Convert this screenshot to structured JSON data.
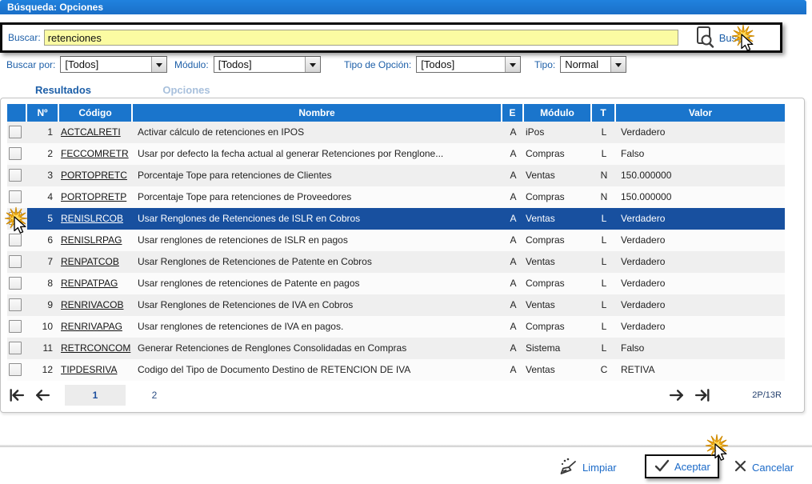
{
  "title": "Búsqueda: Opciones",
  "search": {
    "label": "Buscar:",
    "value": "retenciones",
    "button": "Buscar"
  },
  "filters": [
    {
      "label": "Buscar por:",
      "value": "[Todos]"
    },
    {
      "label": "Módulo:",
      "value": "[Todos]"
    },
    {
      "label": "Tipo de Opción:",
      "value": "[Todos]"
    },
    {
      "label": "Tipo:",
      "value": "Normal"
    }
  ],
  "tabs": [
    {
      "label": "Resultados",
      "active": true
    },
    {
      "label": "Opciones",
      "active": false
    }
  ],
  "table": {
    "headers": [
      "",
      "Nº",
      "Código",
      "Nombre",
      "E",
      "Módulo",
      "T",
      "Valor"
    ],
    "rows": [
      {
        "n": "1",
        "codigo": "ACTCALRETI",
        "nombre": "Activar cálculo de retenciones en IPOS",
        "e": "A",
        "modulo": "iPos",
        "t": "L",
        "valor": "Verdadero",
        "selected": false
      },
      {
        "n": "2",
        "codigo": "FECCOMRETR",
        "nombre": "Usar por defecto la fecha actual al generar Retenciones por Renglone...",
        "e": "A",
        "modulo": "Compras",
        "t": "L",
        "valor": "Falso",
        "selected": false
      },
      {
        "n": "3",
        "codigo": "PORTOPRETC",
        "nombre": "Porcentaje Tope para retenciones de Clientes",
        "e": "A",
        "modulo": "Ventas",
        "t": "N",
        "valor": "150.000000",
        "selected": false
      },
      {
        "n": "4",
        "codigo": "PORTOPRETP",
        "nombre": "Porcentaje Tope para retenciones de Proveedores",
        "e": "A",
        "modulo": "Compras",
        "t": "N",
        "valor": "150.000000",
        "selected": false
      },
      {
        "n": "5",
        "codigo": "RENISLRCOB",
        "nombre": "Usar Renglones de Retenciones de ISLR en Cobros",
        "e": "A",
        "modulo": "Ventas",
        "t": "L",
        "valor": "Verdadero",
        "selected": true
      },
      {
        "n": "6",
        "codigo": "RENISLRPAG",
        "nombre": "Usar renglones de retenciones de ISLR en pagos",
        "e": "A",
        "modulo": "Compras",
        "t": "L",
        "valor": "Verdadero",
        "selected": false
      },
      {
        "n": "7",
        "codigo": "RENPATCOB",
        "nombre": "Usar Renglones de Retenciones de Patente en Cobros",
        "e": "A",
        "modulo": "Ventas",
        "t": "L",
        "valor": "Verdadero",
        "selected": false
      },
      {
        "n": "8",
        "codigo": "RENPATPAG",
        "nombre": "Usar renglones de retenciones de Patente en pagos",
        "e": "A",
        "modulo": "Compras",
        "t": "L",
        "valor": "Verdadero",
        "selected": false
      },
      {
        "n": "9",
        "codigo": "RENRIVACOB",
        "nombre": "Usar Renglones de Retenciones de IVA en Cobros",
        "e": "A",
        "modulo": "Ventas",
        "t": "L",
        "valor": "Verdadero",
        "selected": false
      },
      {
        "n": "10",
        "codigo": "RENRIVAPAG",
        "nombre": "Usar renglones de retenciones de IVA en pagos.",
        "e": "A",
        "modulo": "Compras",
        "t": "L",
        "valor": "Verdadero",
        "selected": false
      },
      {
        "n": "11",
        "codigo": "RETRCONCOM",
        "nombre": "Generar Retenciones de Renglones Consolidadas en Compras",
        "e": "A",
        "modulo": "Sistema",
        "t": "L",
        "valor": "Falso",
        "selected": false
      },
      {
        "n": "12",
        "codigo": "TIPDESRIVA",
        "nombre": "Codigo del Tipo de Documento Destino de RETENCION DE IVA",
        "e": "A",
        "modulo": "Ventas",
        "t": "C",
        "valor": "RETIVA",
        "selected": false
      }
    ]
  },
  "pagination": {
    "pages": [
      "1",
      "2"
    ],
    "current": "1",
    "summary": "2P/13R"
  },
  "footer": {
    "limpiar": "Limpiar",
    "aceptar": "Aceptar",
    "cancelar": "Cancelar"
  },
  "colors": {
    "titlebar": "#1a6fc8",
    "table_header": "#1a75cc",
    "selected_row": "#18509f",
    "accent_blue": "#1d5fa8",
    "input_bg": "#fbfba2",
    "link_blue": "#1b6ac8"
  }
}
